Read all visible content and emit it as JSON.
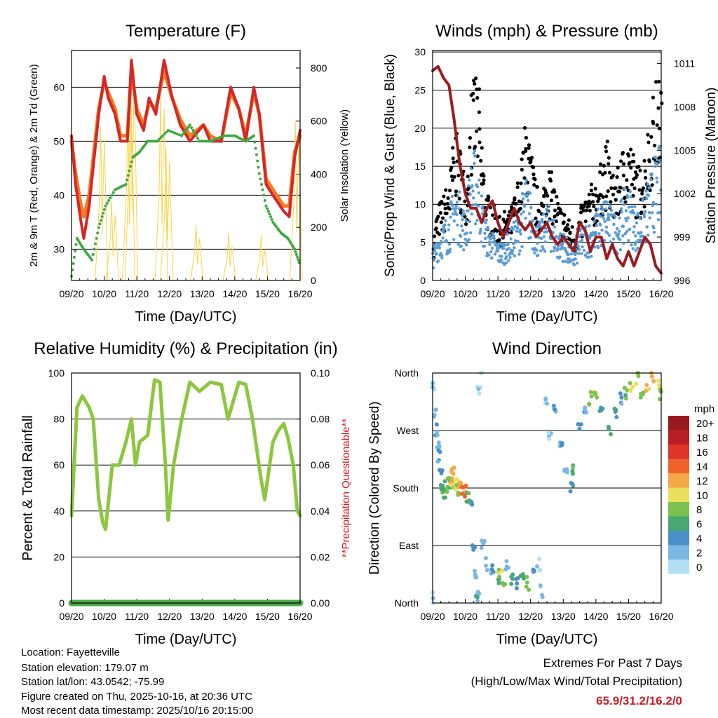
{
  "x_ticks": [
    "09/20",
    "10/20",
    "11/20",
    "12/20",
    "13/20",
    "14/20",
    "15/20",
    "16/20"
  ],
  "chart_data": [
    {
      "type": "line",
      "title": "Temperature (F)",
      "xlabel": "Time (Day/UTC)",
      "ylabel": "2m & 9m T (Red, Orange) & 2m Td (Green)",
      "y2label": "Solar Insolation (Yellow)",
      "x_unit": "hours since 09/20",
      "xlim": [
        0,
        168
      ],
      "ylim": [
        24.2,
        66.8
      ],
      "yticks": [
        30,
        40,
        50,
        60
      ],
      "y2lim": [
        0,
        866
      ],
      "y2ticks": [
        0,
        200,
        400,
        600,
        800
      ],
      "series": [
        {
          "name": "2m T",
          "color": "#d62728",
          "points": [
            [
              0,
              51
            ],
            [
              3,
              42
            ],
            [
              7,
              35
            ],
            [
              9,
              32
            ],
            [
              13,
              38
            ],
            [
              20,
              55
            ],
            [
              24,
              62
            ],
            [
              27,
              58
            ],
            [
              32,
              55
            ],
            [
              36,
              50
            ],
            [
              41,
              50
            ],
            [
              44,
              65
            ],
            [
              48,
              55
            ],
            [
              53,
              52
            ],
            [
              57,
              58
            ],
            [
              62,
              55
            ],
            [
              68,
              65
            ],
            [
              74,
              58
            ],
            [
              80,
              53
            ],
            [
              87,
              50
            ],
            [
              97,
              53
            ],
            [
              102,
              50
            ],
            [
              110,
              50
            ],
            [
              117,
              60
            ],
            [
              123,
              56
            ],
            [
              128,
              50
            ],
            [
              134,
              60
            ],
            [
              138,
              55
            ],
            [
              143,
              42
            ],
            [
              148,
              40
            ],
            [
              156,
              37
            ],
            [
              160,
              36
            ],
            [
              164,
              47
            ],
            [
              168,
              52
            ]
          ]
        },
        {
          "name": "9m T",
          "color": "#f47b20",
          "points": [
            [
              0,
              50
            ],
            [
              3,
              44
            ],
            [
              7,
              38
            ],
            [
              9,
              36
            ],
            [
              13,
              40
            ],
            [
              20,
              56
            ],
            [
              24,
              61
            ],
            [
              27,
              59
            ],
            [
              32,
              56
            ],
            [
              36,
              51
            ],
            [
              41,
              51
            ],
            [
              44,
              63
            ],
            [
              48,
              56
            ],
            [
              53,
              53
            ],
            [
              57,
              57
            ],
            [
              62,
              56
            ],
            [
              68,
              63
            ],
            [
              74,
              58
            ],
            [
              80,
              54
            ],
            [
              87,
              51
            ],
            [
              97,
              53
            ],
            [
              102,
              51
            ],
            [
              110,
              50
            ],
            [
              117,
              59
            ],
            [
              123,
              56
            ],
            [
              128,
              51
            ],
            [
              134,
              59
            ],
            [
              138,
              55
            ],
            [
              143,
              43
            ],
            [
              148,
              41
            ],
            [
              156,
              38
            ],
            [
              160,
              38
            ],
            [
              164,
              48
            ],
            [
              168,
              51
            ]
          ]
        },
        {
          "name": "2m Td",
          "color": "#3ea83e",
          "points": [
            [
              0,
              25
            ],
            [
              4,
              32
            ],
            [
              9,
              30
            ],
            [
              15,
              28
            ],
            [
              20,
              34
            ],
            [
              25,
              38
            ],
            [
              32,
              41
            ],
            [
              40,
              42
            ],
            [
              45,
              47
            ],
            [
              50,
              48
            ],
            [
              56,
              50
            ],
            [
              63,
              50
            ],
            [
              71,
              52
            ],
            [
              81,
              51
            ],
            [
              87,
              53
            ],
            [
              94,
              50
            ],
            [
              102,
              50
            ],
            [
              112,
              51
            ],
            [
              120,
              51
            ],
            [
              128,
              50
            ],
            [
              134,
              51
            ],
            [
              138,
              44
            ],
            [
              143,
              38
            ],
            [
              148,
              35
            ],
            [
              154,
              33
            ],
            [
              159,
              32
            ],
            [
              164,
              30
            ],
            [
              168,
              27
            ]
          ]
        }
      ],
      "solar_peaks": [
        [
          22,
          580
        ],
        [
          30,
          300
        ],
        [
          42,
          700
        ],
        [
          44,
          850
        ],
        [
          66,
          700
        ],
        [
          70,
          500
        ],
        [
          92,
          210
        ],
        [
          116,
          180
        ],
        [
          140,
          170
        ],
        [
          165,
          600
        ]
      ]
    },
    {
      "type": "scatter",
      "title": "Winds (mph) & Pressure (mb)",
      "xlabel": "Time (Day/UTC)",
      "ylabel": "Sonic/Prop Wind & Gust (Blue, Black)",
      "y2label": "Station Pressure (Maroon)",
      "xlim": [
        0,
        168
      ],
      "ylim": [
        0,
        30.2
      ],
      "yticks": [
        0,
        5,
        10,
        15,
        20,
        25,
        30
      ],
      "y2lim": [
        996,
        1011.9
      ],
      "y2ticks": [
        996,
        999,
        1002,
        1005,
        1008,
        1011
      ],
      "interval_hours": 4,
      "gust": [
        5,
        9,
        10,
        12,
        18,
        15,
        12,
        22,
        25,
        15,
        10,
        9,
        7,
        8,
        8,
        10,
        13,
        19,
        15,
        11,
        10,
        14,
        12,
        9,
        8,
        7,
        6,
        8,
        10,
        11,
        12,
        14,
        16,
        12,
        13,
        16,
        17,
        14,
        13,
        16,
        20,
        23,
        24
      ],
      "wind": [
        3,
        5,
        6,
        7,
        10,
        9,
        7,
        12,
        14,
        9,
        6,
        5,
        4,
        4,
        5,
        6,
        7,
        11,
        9,
        6,
        6,
        8,
        7,
        5,
        5,
        4,
        3,
        5,
        6,
        6,
        7,
        8,
        9,
        7,
        7,
        9,
        10,
        8,
        7,
        9,
        11,
        13,
        14
      ],
      "pressure": [
        1010.5,
        1010.8,
        1010,
        1009.5,
        1007,
        1004,
        1002,
        1001,
        1001,
        1000,
        1001,
        1001.5,
        1000,
        999,
        1000,
        1001,
        1000,
        999.5,
        1000,
        999,
        999.5,
        1000,
        999,
        998.5,
        999,
        998.5,
        998,
        1000,
        999.5,
        998,
        999,
        999,
        997.5,
        998.5,
        997.5,
        997,
        998,
        997,
        998,
        999,
        998.5,
        997,
        996.5
      ],
      "colors": {
        "gust": "#000000",
        "wind": "#5b9bd5",
        "pressure": "#9b1b1f"
      }
    },
    {
      "type": "line",
      "title": "Relative Humidity (%) & Precipitation (in)",
      "xlabel": "Time (Day/UTC)",
      "ylabel": "Percent & Total Rainfall",
      "y2label": "**Precipitation Questionable**",
      "xlim": [
        0,
        168
      ],
      "ylim": [
        0,
        100
      ],
      "yticks": [
        0,
        20,
        40,
        60,
        80,
        100
      ],
      "y2lim": [
        0,
        0.1
      ],
      "y2ticks": [
        "0.00",
        "0.02",
        "0.04",
        "0.06",
        "0.08",
        "0.10"
      ],
      "series": [
        {
          "name": "RH",
          "color": "#8dc63f",
          "points": [
            [
              0,
              38
            ],
            [
              4,
              85
            ],
            [
              8,
              90
            ],
            [
              13,
              85
            ],
            [
              16,
              80
            ],
            [
              20,
              45
            ],
            [
              23,
              35
            ],
            [
              25,
              32
            ],
            [
              30,
              60
            ],
            [
              35,
              60
            ],
            [
              40,
              70
            ],
            [
              44,
              80
            ],
            [
              47,
              60
            ],
            [
              50,
              70
            ],
            [
              56,
              73
            ],
            [
              61,
              97
            ],
            [
              65,
              96
            ],
            [
              69,
              60
            ],
            [
              71,
              36
            ],
            [
              75,
              60
            ],
            [
              81,
              80
            ],
            [
              87,
              96
            ],
            [
              94,
              92
            ],
            [
              102,
              96
            ],
            [
              110,
              95
            ],
            [
              115,
              80
            ],
            [
              123,
              96
            ],
            [
              128,
              95
            ],
            [
              133,
              80
            ],
            [
              139,
              55
            ],
            [
              142,
              45
            ],
            [
              148,
              70
            ],
            [
              152,
              75
            ],
            [
              156,
              78
            ],
            [
              159,
              72
            ],
            [
              163,
              60
            ],
            [
              166,
              40
            ],
            [
              168,
              38
            ]
          ]
        },
        {
          "name": "Precipitation",
          "color": "#4aa84a",
          "points": [
            [
              0,
              0
            ],
            [
              168,
              0
            ]
          ]
        }
      ]
    },
    {
      "type": "scatter",
      "title": "Wind Direction",
      "xlabel": "Time (Day/UTC)",
      "ylabel": "Direction (Colored By Speed)",
      "xlim": [
        0,
        168
      ],
      "ylim": [
        0,
        360
      ],
      "yticks": [
        {
          "v": 0,
          "label": "North"
        },
        {
          "v": 90,
          "label": "East"
        },
        {
          "v": 180,
          "label": "South"
        },
        {
          "v": 270,
          "label": "West"
        },
        {
          "v": 360,
          "label": "North"
        }
      ],
      "points_t_dir_speed": [
        [
          0,
          340,
          2
        ],
        [
          1,
          10,
          2
        ],
        [
          2,
          300,
          3
        ],
        [
          3,
          270,
          4
        ],
        [
          4,
          250,
          4
        ],
        [
          5,
          230,
          4
        ],
        [
          6,
          200,
          5
        ],
        [
          7,
          185,
          6
        ],
        [
          8,
          180,
          8
        ],
        [
          9,
          170,
          7
        ],
        [
          10,
          175,
          9
        ],
        [
          12,
          185,
          8
        ],
        [
          14,
          195,
          12
        ],
        [
          15,
          205,
          13
        ],
        [
          16,
          190,
          10
        ],
        [
          17,
          185,
          11
        ],
        [
          18,
          175,
          9
        ],
        [
          20,
          185,
          13
        ],
        [
          22,
          178,
          15
        ],
        [
          24,
          175,
          14
        ],
        [
          26,
          165,
          8
        ],
        [
          28,
          150,
          6
        ],
        [
          30,
          80,
          5
        ],
        [
          31,
          40,
          4
        ],
        [
          32,
          20,
          7
        ],
        [
          33,
          10,
          3
        ],
        [
          34,
          330,
          2
        ],
        [
          35,
          360,
          2
        ],
        [
          37,
          90,
          3
        ],
        [
          40,
          60,
          3
        ],
        [
          44,
          50,
          4
        ],
        [
          48,
          40,
          6
        ],
        [
          50,
          45,
          10
        ],
        [
          52,
          30,
          9
        ],
        [
          55,
          60,
          4
        ],
        [
          58,
          40,
          7
        ],
        [
          62,
          30,
          5
        ],
        [
          66,
          40,
          6
        ],
        [
          70,
          30,
          8
        ],
        [
          74,
          45,
          5
        ],
        [
          78,
          60,
          2
        ],
        [
          80,
          20,
          2
        ],
        [
          84,
          320,
          2
        ],
        [
          86,
          260,
          2
        ],
        [
          90,
          300,
          4
        ],
        [
          94,
          250,
          4
        ],
        [
          98,
          200,
          3
        ],
        [
          102,
          180,
          6
        ],
        [
          104,
          210,
          8
        ],
        [
          108,
          280,
          5
        ],
        [
          112,
          300,
          4
        ],
        [
          116,
          320,
          9
        ],
        [
          120,
          320,
          10
        ],
        [
          124,
          310,
          6
        ],
        [
          130,
          270,
          7
        ],
        [
          134,
          300,
          6
        ],
        [
          138,
          320,
          4
        ],
        [
          142,
          330,
          8
        ],
        [
          146,
          340,
          10
        ],
        [
          150,
          350,
          10
        ],
        [
          154,
          320,
          9
        ],
        [
          158,
          340,
          12
        ],
        [
          162,
          355,
          13
        ],
        [
          166,
          340,
          11
        ],
        [
          168,
          330,
          9
        ]
      ],
      "legend": {
        "title": "mph",
        "placement": "right",
        "labels": [
          "20+",
          "18",
          "16",
          "14",
          "12",
          "10",
          "8",
          "6",
          "4",
          "2",
          "0"
        ],
        "colors": [
          "#981a1e",
          "#bb1e25",
          "#e0332a",
          "#f0612b",
          "#f6a847",
          "#e8e05a",
          "#7cc04f",
          "#47a874",
          "#4a8fc7",
          "#7ab8e3",
          "#b3e0f5"
        ]
      }
    }
  ],
  "footer": {
    "location": "Location: Fayetteville",
    "elevation": "Station elevation: 179.07 m",
    "latlon": "Station lat/lon: 43.0542; -75.99",
    "created": "Figure created on Thu, 2025-10-16, at 20:36 UTC",
    "recent": "Most recent data timestamp: 2025/10/16 20:15:00",
    "extremes_title": "Extremes For Past 7 Days",
    "extremes_sub": "(High/Low/Max Wind/Total Precipitation)",
    "extremes_values": "65.9/31.2/16.2/0",
    "extremes_color": "#c8202a"
  }
}
